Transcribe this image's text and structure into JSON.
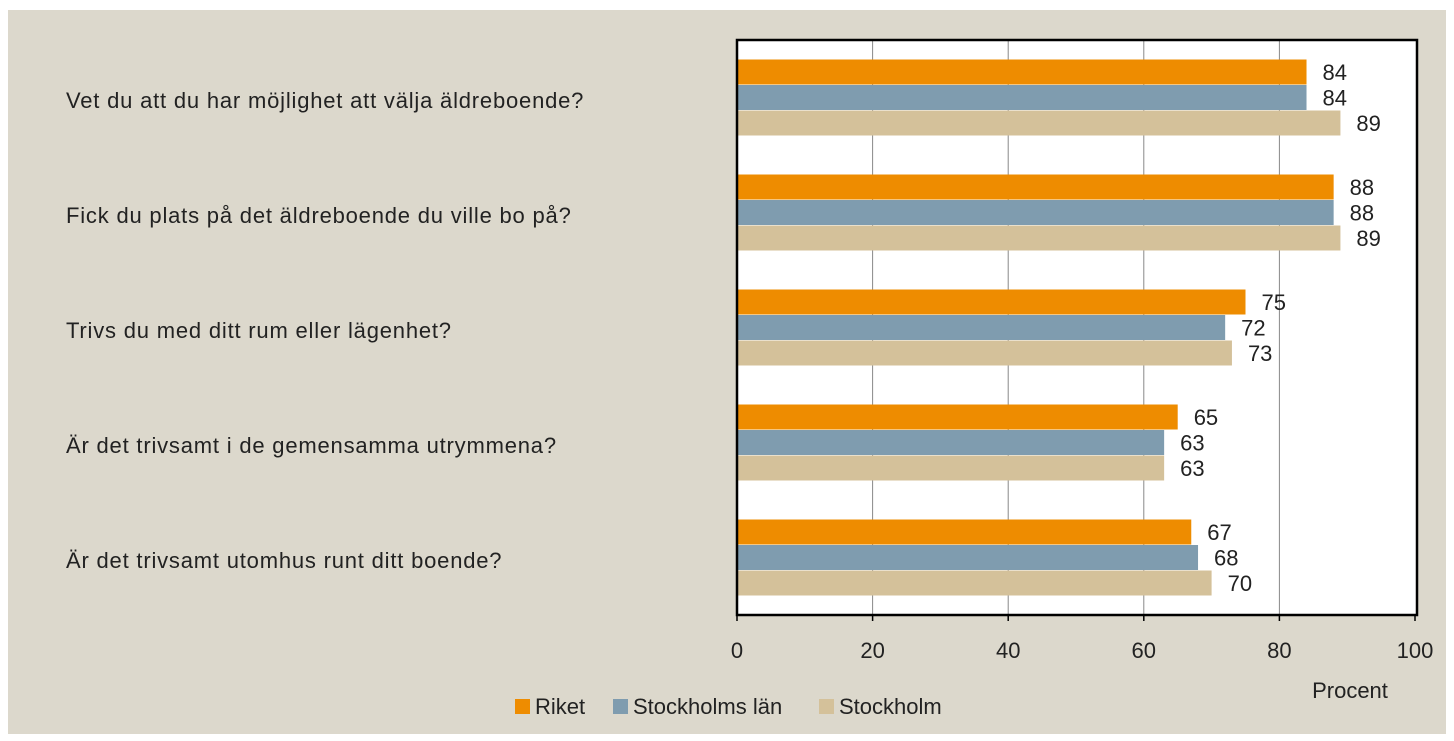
{
  "chart_data": {
    "type": "barh",
    "categories": [
      "Vet du att du har möjlighet att välja äldreboende?",
      "Fick du plats på det äldreboende du ville bo på?",
      "Trivs du med ditt rum eller lägenhet?",
      "Är det trivsamt i de gemensamma utrymmena?",
      "Är det trivsamt utomhus runt ditt boende?"
    ],
    "series": [
      {
        "name": "Riket",
        "color": "#ee8c00",
        "values": [
          84,
          88,
          75,
          65,
          67
        ]
      },
      {
        "name": "Stockholms län",
        "color": "#7f9caf",
        "values": [
          84,
          88,
          72,
          63,
          68
        ]
      },
      {
        "name": "Stockholm",
        "color": "#d4c19a",
        "values": [
          89,
          89,
          73,
          63,
          70
        ]
      }
    ],
    "xlabel": "Procent",
    "xlim": [
      0,
      100
    ],
    "xticks": [
      0,
      20,
      40,
      60,
      80,
      100
    ],
    "grid": true,
    "legend": "bottom"
  }
}
